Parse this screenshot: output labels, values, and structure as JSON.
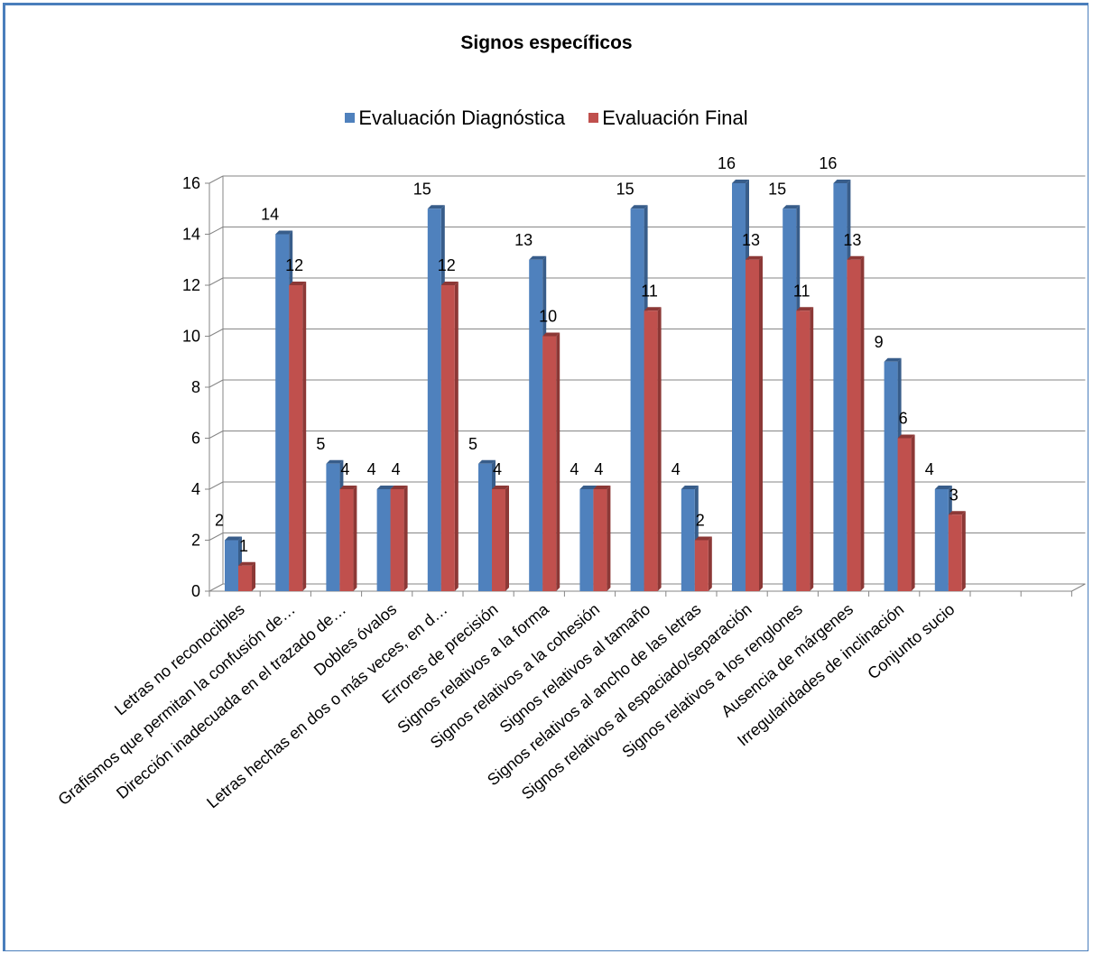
{
  "chart_data": {
    "type": "bar",
    "title": "Signos específicos",
    "categories": [
      "Letras no reconocibles",
      "Grafismos que permitan la confusión de…",
      "Dirección inadecuada en el trazado de…",
      "Dobles óvalos",
      "Letras hechas en dos o más veces, en d…",
      "Errores de precisión",
      "Signos relativos a la forma",
      "Signos relativos a la cohesión",
      "Signos relativos al tamaño",
      "Signos relativos al ancho de las letras",
      "Signos relativos al espaciado/separación",
      "Signos relativos a los renglones",
      "Ausencia de márgenes",
      "Irregularidades de inclinación",
      "Conjunto sucio"
    ],
    "series": [
      {
        "name": "Evaluación Diagnóstica",
        "values": [
          2,
          14,
          5,
          4,
          15,
          5,
          13,
          4,
          15,
          4,
          16,
          15,
          16,
          9,
          4
        ]
      },
      {
        "name": "Evaluación Final",
        "values": [
          1,
          12,
          4,
          4,
          12,
          4,
          10,
          4,
          11,
          2,
          13,
          11,
          13,
          6,
          3
        ]
      }
    ],
    "yticks": [
      "0",
      "2",
      "4",
      "6",
      "8",
      "10",
      "12",
      "14",
      "16"
    ],
    "ylim": [
      0,
      16
    ],
    "grid": true,
    "legend_position": "top",
    "colors": {
      "series1": "#4f81bd",
      "series1_dark": "#385d8a",
      "series2": "#c0504d",
      "series2_dark": "#8c3836",
      "grid": "#868686",
      "frame": "#4a7ebb"
    }
  }
}
